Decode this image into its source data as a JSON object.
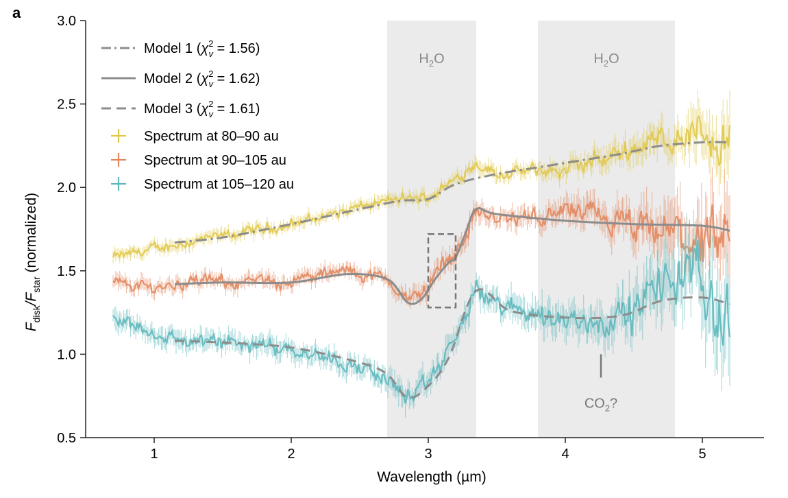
{
  "panel_label": "a",
  "chart_data": {
    "type": "line",
    "xlabel": "Wavelength (µm)",
    "ylabel": {
      "main": "F",
      "sub1": "disk",
      "slash": "/F",
      "sub2": "star",
      "suffix": " (normalized)"
    },
    "xlim": [
      0.5,
      5.45
    ],
    "ylim": [
      0.5,
      3.0
    ],
    "x_ticks": [
      1,
      2,
      3,
      4,
      5
    ],
    "y_ticks": [
      0.5,
      1.0,
      1.5,
      2.0,
      2.5,
      3.0
    ],
    "x_tick_labels": [
      "1",
      "2",
      "3",
      "4",
      "5"
    ],
    "y_tick_labels": [
      "0.5",
      "1.0",
      "1.5",
      "2.0",
      "2.5",
      "3.0"
    ],
    "grid": false,
    "legend_position": "top-left",
    "shaded_bands": [
      {
        "x_range": [
          2.7,
          3.35
        ],
        "label_main": "H",
        "label_sub": "2",
        "label_end": "O",
        "color": "#ebebeb"
      },
      {
        "x_range": [
          3.8,
          4.8
        ],
        "label_main": "H",
        "label_sub": "2",
        "label_end": "O",
        "color": "#ebebeb"
      }
    ],
    "annotations": [
      {
        "id": "co2",
        "text_main": "CO",
        "text_sub": "2",
        "text_end": "?",
        "x": 4.26,
        "y": 0.72,
        "marker_y_range": [
          0.86,
          1.0
        ]
      },
      {
        "id": "zoom-box",
        "x_range": [
          3.0,
          3.2
        ],
        "y_range": [
          1.28,
          1.72
        ]
      }
    ],
    "models": [
      {
        "name_main": "Model 1 (",
        "name_chi": "χ",
        "name_sup": "2",
        "name_sub": "v",
        "name_end": " = 1.56)",
        "dash": "dashdot",
        "color": "#8c8c8c",
        "x": [
          1.15,
          1.5,
          2.0,
          2.5,
          2.8,
          3.0,
          3.2,
          3.5,
          3.8,
          4.1,
          4.4,
          4.7,
          5.0,
          5.2
        ],
        "y": [
          1.67,
          1.7,
          1.78,
          1.87,
          1.92,
          1.93,
          2.02,
          2.08,
          2.12,
          2.16,
          2.2,
          2.25,
          2.27,
          2.27
        ]
      },
      {
        "name_main": "Model 2 (",
        "name_chi": "χ",
        "name_sup": "2",
        "name_sub": "v",
        "name_end": " = 1.62)",
        "dash": "solid",
        "color": "#8c8c8c",
        "x": [
          1.15,
          1.5,
          2.0,
          2.4,
          2.7,
          2.85,
          2.95,
          3.05,
          3.15,
          3.2,
          3.27,
          3.35,
          3.5,
          4.0,
          4.5,
          5.0,
          5.2
        ],
        "y": [
          1.42,
          1.43,
          1.43,
          1.48,
          1.45,
          1.31,
          1.33,
          1.45,
          1.55,
          1.58,
          1.72,
          1.87,
          1.84,
          1.8,
          1.78,
          1.77,
          1.74
        ]
      },
      {
        "name_main": "Model 3 (",
        "name_chi": "χ",
        "name_sup": "2",
        "name_sub": "v",
        "name_end": " = 1.61)",
        "dash": "dashed",
        "color": "#8c8c8c",
        "x": [
          1.15,
          1.5,
          2.0,
          2.5,
          2.7,
          2.85,
          3.0,
          3.15,
          3.35,
          3.6,
          4.0,
          4.4,
          4.7,
          5.0,
          5.2
        ],
        "y": [
          1.08,
          1.07,
          1.04,
          0.95,
          0.88,
          0.74,
          0.81,
          0.98,
          1.38,
          1.26,
          1.22,
          1.23,
          1.32,
          1.34,
          1.3
        ]
      }
    ],
    "series": [
      {
        "name": "Spectrum at 80–90 au",
        "color": "#e0c84a",
        "x": [
          0.7,
          1.0,
          1.3,
          1.6,
          2.0,
          2.4,
          2.7,
          3.0,
          3.2,
          3.35,
          3.5,
          3.8,
          4.0,
          4.3,
          4.6,
          4.8,
          5.0,
          5.2
        ],
        "y": [
          1.58,
          1.63,
          1.68,
          1.72,
          1.78,
          1.86,
          1.92,
          1.94,
          2.05,
          2.15,
          2.08,
          2.1,
          2.1,
          2.18,
          2.27,
          2.3,
          2.33,
          2.25
        ],
        "noise": [
          0.025,
          0.025,
          0.025,
          0.025,
          0.025,
          0.025,
          0.025,
          0.025,
          0.03,
          0.03,
          0.03,
          0.03,
          0.04,
          0.05,
          0.06,
          0.07,
          0.1,
          0.14
        ]
      },
      {
        "name": "Spectrum at 90–105 au",
        "color": "#e2875e",
        "x": [
          0.7,
          1.0,
          1.3,
          1.6,
          2.0,
          2.4,
          2.7,
          2.85,
          3.0,
          3.1,
          3.2,
          3.35,
          3.5,
          3.8,
          4.0,
          4.3,
          4.6,
          4.8,
          5.0,
          5.2
        ],
        "y": [
          1.43,
          1.4,
          1.44,
          1.43,
          1.44,
          1.5,
          1.45,
          1.32,
          1.4,
          1.55,
          1.6,
          1.86,
          1.8,
          1.82,
          1.86,
          1.8,
          1.72,
          1.72,
          1.68,
          1.55
        ],
        "noise": [
          0.03,
          0.03,
          0.03,
          0.03,
          0.03,
          0.03,
          0.03,
          0.035,
          0.04,
          0.04,
          0.04,
          0.04,
          0.04,
          0.04,
          0.05,
          0.07,
          0.09,
          0.12,
          0.14,
          0.18
        ]
      },
      {
        "name": "Spectrum at 105–120 au",
        "color": "#5eb8bc",
        "x": [
          0.7,
          1.0,
          1.3,
          1.6,
          2.0,
          2.4,
          2.7,
          2.85,
          2.95,
          3.1,
          3.2,
          3.35,
          3.5,
          3.8,
          4.0,
          4.3,
          4.5,
          4.7,
          4.9,
          5.1,
          5.2
        ],
        "y": [
          1.22,
          1.12,
          1.07,
          1.07,
          1.04,
          0.95,
          0.85,
          0.74,
          0.77,
          0.95,
          1.1,
          1.38,
          1.3,
          1.24,
          1.2,
          1.2,
          1.25,
          1.42,
          1.5,
          1.3,
          1.15
        ],
        "noise": [
          0.04,
          0.04,
          0.04,
          0.04,
          0.04,
          0.04,
          0.045,
          0.05,
          0.05,
          0.05,
          0.05,
          0.05,
          0.05,
          0.06,
          0.07,
          0.08,
          0.1,
          0.12,
          0.15,
          0.18,
          0.2
        ]
      }
    ]
  }
}
